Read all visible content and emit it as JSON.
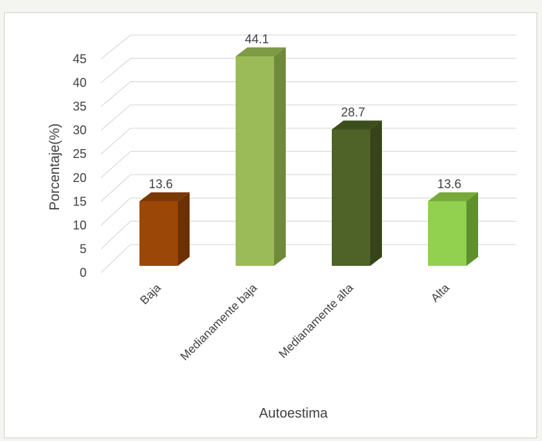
{
  "chart_data": {
    "type": "bar",
    "title": "",
    "xlabel": "Autoestima",
    "ylabel": "Porcentaje(%)",
    "ylim": [
      0,
      45
    ],
    "yticks": [
      0,
      5,
      10,
      15,
      20,
      25,
      30,
      35,
      40,
      45
    ],
    "categories": [
      "Baja",
      "Medianamente baja",
      "Medianamente alta",
      "Alta"
    ],
    "values": [
      13.6,
      44.1,
      28.7,
      13.6
    ],
    "data_labels": [
      "13.6",
      "44.1",
      "28.7",
      "13.6"
    ],
    "grid": true,
    "legend": "none",
    "style": "3d-column",
    "colors": [
      {
        "front": "#9a4708",
        "side": "#6b3004",
        "top": "#7a3805"
      },
      {
        "front": "#9bbb59",
        "side": "#6e8a3a",
        "top": "#7d9a45"
      },
      {
        "front": "#4f6228",
        "side": "#36441a",
        "top": "#3d4e1d"
      },
      {
        "front": "#92d050",
        "side": "#5f8f2e",
        "top": "#76ab3c"
      }
    ]
  }
}
